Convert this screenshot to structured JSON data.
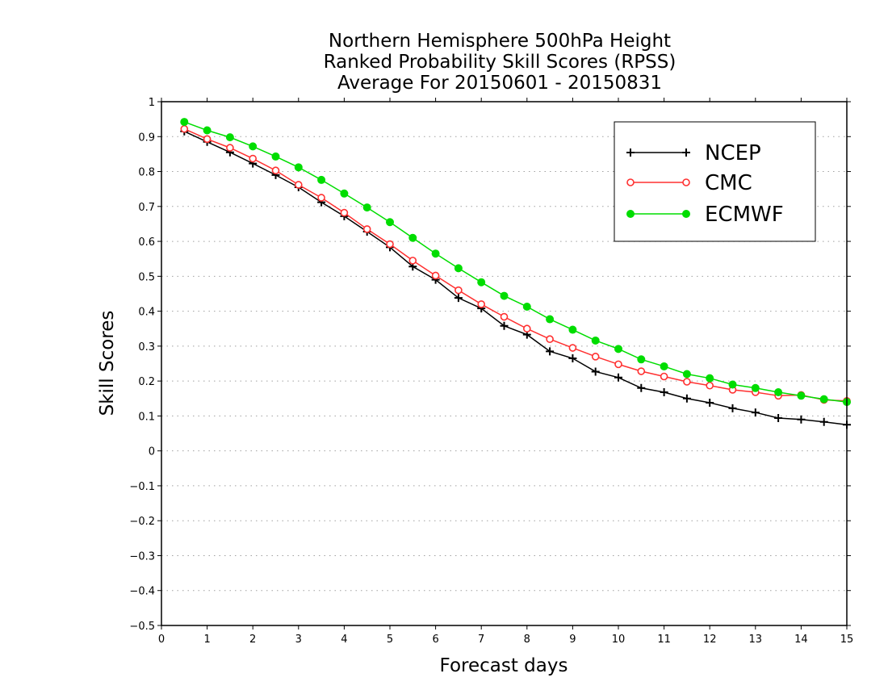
{
  "chart_data": {
    "type": "line",
    "title": [
      "Northern Hemisphere 500hPa Height",
      "Ranked Probability Skill Scores (RPSS)",
      "Average For 20150601 - 20150831"
    ],
    "xlabel": "Forecast days",
    "ylabel": "Skill Scores",
    "xlim": [
      0,
      15
    ],
    "ylim": [
      -0.5,
      1
    ],
    "xticks": [
      0,
      1,
      2,
      3,
      4,
      5,
      6,
      7,
      8,
      9,
      10,
      11,
      12,
      13,
      14,
      15
    ],
    "yticks": [
      -0.5,
      -0.4,
      -0.3,
      -0.2,
      -0.1,
      0,
      0.1,
      0.2,
      0.3,
      0.4,
      0.5,
      0.6,
      0.7,
      0.8,
      0.9,
      1
    ],
    "ytick_labels": [
      "−0.5",
      "−0.4",
      "−0.3",
      "−0.2",
      "−0.1",
      "0",
      "0.1",
      "0.2",
      "0.3",
      "0.4",
      "0.5",
      "0.6",
      "0.7",
      "0.8",
      "0.9",
      "1"
    ],
    "grid": "horizontal-dotted",
    "legend_position": "top-right",
    "x": [
      0.5,
      1,
      1.5,
      2,
      2.5,
      3,
      3.5,
      4,
      4.5,
      5,
      5.5,
      6,
      6.5,
      7,
      7.5,
      8,
      8.5,
      9,
      9.5,
      10,
      10.5,
      11,
      11.5,
      12,
      12.5,
      13,
      13.5,
      14,
      14.5,
      15
    ],
    "series": [
      {
        "name": "NCEP",
        "color": "#000000",
        "marker": "plus",
        "values": [
          0.915,
          0.885,
          0.855,
          0.823,
          0.79,
          0.755,
          0.712,
          0.672,
          0.628,
          0.583,
          0.528,
          0.49,
          0.438,
          0.408,
          0.358,
          0.333,
          0.285,
          0.265,
          0.227,
          0.21,
          0.18,
          0.168,
          0.15,
          0.138,
          0.122,
          0.11,
          0.094,
          0.09,
          0.083,
          0.075
        ]
      },
      {
        "name": "CMC",
        "color": "#ff3030",
        "marker": "open-circle",
        "values": [
          0.922,
          0.893,
          0.868,
          0.837,
          0.803,
          0.762,
          0.725,
          0.682,
          0.635,
          0.592,
          0.545,
          0.502,
          0.46,
          0.42,
          0.384,
          0.35,
          0.32,
          0.295,
          0.27,
          0.248,
          0.228,
          0.213,
          0.198,
          0.187,
          0.175,
          0.168,
          0.158,
          0.16,
          0.146,
          0.143
        ]
      },
      {
        "name": "ECMWF",
        "color": "#00dd00",
        "marker": "filled-circle",
        "values": [
          0.942,
          0.918,
          0.898,
          0.872,
          0.843,
          0.812,
          0.776,
          0.737,
          0.697,
          0.655,
          0.61,
          0.565,
          0.523,
          0.483,
          0.444,
          0.413,
          0.377,
          0.347,
          0.316,
          0.292,
          0.262,
          0.242,
          0.22,
          0.208,
          0.19,
          0.18,
          0.168,
          0.158,
          0.148,
          0.14
        ]
      }
    ]
  }
}
